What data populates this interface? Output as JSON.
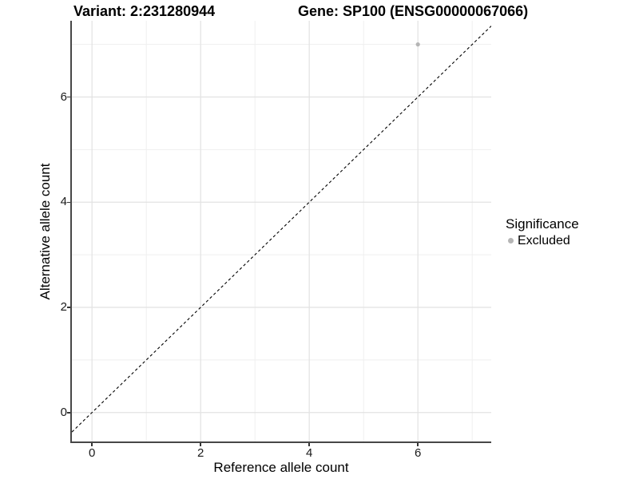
{
  "titles": {
    "variant": "Variant: 2:231280944",
    "gene": "Gene: SP100 (ENSG00000067066)"
  },
  "legend": {
    "title": "Significance",
    "items": [
      {
        "label": "Excluded",
        "color": "#b5b5b5"
      }
    ]
  },
  "chart_data": {
    "type": "scatter",
    "title_left": "Variant: 2:231280944",
    "title_right": "Gene: SP100 (ENSG00000067066)",
    "xlabel": "Reference allele count",
    "ylabel": "Alternative allele count",
    "points": [
      {
        "x": 6,
        "y": 7,
        "series": "Excluded",
        "color": "#b5b5b5"
      }
    ],
    "reference_line": {
      "kind": "identity",
      "slope": 1,
      "intercept": 0,
      "style": "dashed",
      "color": "#000000"
    },
    "xlim": [
      -0.37,
      7.35
    ],
    "ylim": [
      -0.55,
      7.45
    ],
    "x_major_ticks": [
      0,
      2,
      4,
      6
    ],
    "y_major_ticks": [
      0,
      2,
      4,
      6
    ],
    "x_minor_gridlines": [
      1,
      3,
      5,
      7
    ],
    "y_minor_gridlines": [
      1,
      3,
      5,
      7
    ],
    "grid": true,
    "grid_major_color": "#e2e2e2",
    "grid_minor_color": "#efefef",
    "legend_position": "right",
    "legend_title": "Significance",
    "legend_entries": [
      "Excluded"
    ]
  }
}
